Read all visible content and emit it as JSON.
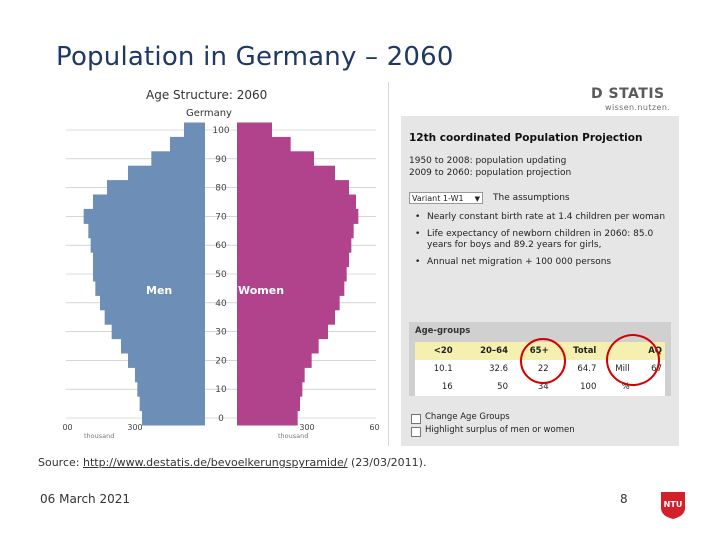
{
  "slide": {
    "title": "Population in Germany – 2060",
    "source_prefix": "Source: ",
    "source_link": "http://www.destatis.de/bevoelkerungspyramide/",
    "source_suffix": " (23/03/2011).",
    "date": "06 March 2021",
    "page_number": "8",
    "ntu_logo_text": "NTU"
  },
  "chart_data": {
    "type": "bar",
    "orientation": "horizontal-pyramid",
    "title": "Age Structure: 2060",
    "subtitle": "Germany",
    "ylabel": "",
    "ylim": [
      0,
      100
    ],
    "y_ticks": [
      0,
      10,
      20,
      30,
      40,
      50,
      60,
      70,
      80,
      90,
      100
    ],
    "x_ticks": [
      "600",
      "300",
      "300",
      "600"
    ],
    "x_unit_left": "thousand",
    "x_unit_right": "thousand",
    "xlim": [
      0,
      600
    ],
    "series_labels": [
      "Men",
      "Women"
    ],
    "colors": {
      "men": "#6d8eb6",
      "women": "#b0438c",
      "axis": "#bdbdbd"
    },
    "ages": [
      0,
      5,
      10,
      15,
      20,
      25,
      30,
      35,
      40,
      45,
      50,
      55,
      60,
      65,
      70,
      75,
      80,
      85,
      90,
      95,
      100
    ],
    "series": [
      {
        "name": "Men",
        "values": [
          270,
          280,
          290,
          300,
          330,
          360,
          400,
          430,
          450,
          470,
          480,
          480,
          490,
          500,
          520,
          480,
          420,
          330,
          230,
          150,
          90
        ]
      },
      {
        "name": "Women",
        "values": [
          260,
          270,
          280,
          290,
          320,
          350,
          390,
          420,
          440,
          460,
          470,
          480,
          490,
          500,
          520,
          510,
          480,
          420,
          330,
          230,
          150
        ]
      }
    ]
  },
  "projection": {
    "logo": "D STATIS",
    "logo_sub": "wissen.nutzen.",
    "title": "12th coordinated Population Projection",
    "line1": "1950 to 2008: population updating",
    "line2": "2009 to 2060: population projection",
    "variant": "Variant 1-W1",
    "assumptions_label": "The assumptions",
    "bullets": [
      "Nearly constant birth rate at 1.4 children per woman",
      "Life expectancy of newborn children in 2060: 85.0 years for boys and 89.2 years for girls,",
      "Annual net migration + 100 000 persons"
    ],
    "age_groups_title": "Age-groups",
    "table_header": [
      "<20",
      "20–64",
      "65+",
      "Total",
      "",
      "AQ"
    ],
    "table_rows": [
      [
        "10.1",
        "32.6",
        "22",
        "64.7",
        "Mill",
        "67"
      ],
      [
        "16",
        "50",
        "34",
        "100",
        "%",
        ""
      ]
    ],
    "checkbox1": "Change Age Groups",
    "checkbox2": "Highlight surplus of men or women"
  }
}
